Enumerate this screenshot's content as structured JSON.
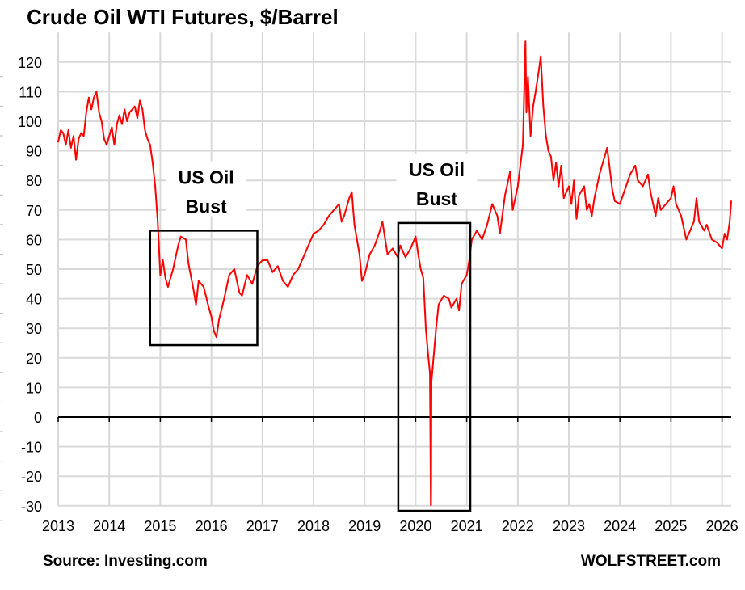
{
  "chart_data": {
    "type": "line",
    "title": "Crude Oil WTI Futures, $/Barrel",
    "xlabel": "",
    "ylabel": "",
    "xlim": [
      2013,
      2026.2
    ],
    "ylim": [
      -30,
      130
    ],
    "grid": true,
    "x_ticks": [
      "2013",
      "2014",
      "2015",
      "2016",
      "2017",
      "2018",
      "2019",
      "2020",
      "2021",
      "2022",
      "2023",
      "2024",
      "2025",
      "2026"
    ],
    "y_ticks": [
      -30,
      -20,
      -10,
      0,
      10,
      20,
      30,
      40,
      50,
      60,
      70,
      80,
      90,
      100,
      110,
      120
    ],
    "line_color": "#ff0000",
    "series": [
      {
        "name": "WTI",
        "points": [
          [
            2013.0,
            93
          ],
          [
            2013.05,
            97
          ],
          [
            2013.1,
            96
          ],
          [
            2013.15,
            92
          ],
          [
            2013.2,
            97
          ],
          [
            2013.25,
            91
          ],
          [
            2013.3,
            95
          ],
          [
            2013.35,
            87
          ],
          [
            2013.4,
            94
          ],
          [
            2013.45,
            96
          ],
          [
            2013.5,
            95
          ],
          [
            2013.55,
            103
          ],
          [
            2013.6,
            108
          ],
          [
            2013.65,
            104
          ],
          [
            2013.7,
            108
          ],
          [
            2013.75,
            110
          ],
          [
            2013.8,
            103
          ],
          [
            2013.85,
            100
          ],
          [
            2013.9,
            94
          ],
          [
            2013.95,
            92
          ],
          [
            2014.0,
            95
          ],
          [
            2014.05,
            98
          ],
          [
            2014.1,
            92
          ],
          [
            2014.15,
            99
          ],
          [
            2014.2,
            102
          ],
          [
            2014.25,
            99
          ],
          [
            2014.3,
            104
          ],
          [
            2014.35,
            100
          ],
          [
            2014.4,
            103
          ],
          [
            2014.5,
            105
          ],
          [
            2014.55,
            101
          ],
          [
            2014.6,
            107
          ],
          [
            2014.65,
            104
          ],
          [
            2014.7,
            97
          ],
          [
            2014.75,
            94
          ],
          [
            2014.8,
            92
          ],
          [
            2014.85,
            86
          ],
          [
            2014.9,
            78
          ],
          [
            2014.95,
            66
          ],
          [
            2015.0,
            48
          ],
          [
            2015.05,
            53
          ],
          [
            2015.1,
            47
          ],
          [
            2015.15,
            44
          ],
          [
            2015.25,
            50
          ],
          [
            2015.35,
            58
          ],
          [
            2015.4,
            61
          ],
          [
            2015.5,
            60
          ],
          [
            2015.55,
            52
          ],
          [
            2015.65,
            43
          ],
          [
            2015.7,
            38
          ],
          [
            2015.75,
            46
          ],
          [
            2015.85,
            44
          ],
          [
            2015.95,
            37
          ],
          [
            2016.0,
            34
          ],
          [
            2016.05,
            29
          ],
          [
            2016.1,
            27
          ],
          [
            2016.15,
            33
          ],
          [
            2016.25,
            40
          ],
          [
            2016.35,
            48
          ],
          [
            2016.45,
            50
          ],
          [
            2016.55,
            42
          ],
          [
            2016.6,
            41
          ],
          [
            2016.7,
            48
          ],
          [
            2016.8,
            45
          ],
          [
            2016.9,
            51
          ],
          [
            2017.0,
            53
          ],
          [
            2017.1,
            53
          ],
          [
            2017.2,
            49
          ],
          [
            2017.3,
            51
          ],
          [
            2017.4,
            46
          ],
          [
            2017.5,
            44
          ],
          [
            2017.6,
            48
          ],
          [
            2017.7,
            50
          ],
          [
            2017.8,
            54
          ],
          [
            2017.9,
            58
          ],
          [
            2018.0,
            62
          ],
          [
            2018.1,
            63
          ],
          [
            2018.2,
            65
          ],
          [
            2018.3,
            68
          ],
          [
            2018.4,
            70
          ],
          [
            2018.5,
            72
          ],
          [
            2018.55,
            66
          ],
          [
            2018.6,
            68
          ],
          [
            2018.7,
            74
          ],
          [
            2018.75,
            76
          ],
          [
            2018.8,
            65
          ],
          [
            2018.9,
            55
          ],
          [
            2018.95,
            46
          ],
          [
            2019.0,
            48
          ],
          [
            2019.1,
            55
          ],
          [
            2019.2,
            58
          ],
          [
            2019.3,
            63
          ],
          [
            2019.35,
            66
          ],
          [
            2019.45,
            55
          ],
          [
            2019.55,
            57
          ],
          [
            2019.65,
            54
          ],
          [
            2019.7,
            58
          ],
          [
            2019.8,
            54
          ],
          [
            2019.9,
            57
          ],
          [
            2020.0,
            61
          ],
          [
            2020.05,
            55
          ],
          [
            2020.1,
            50
          ],
          [
            2020.15,
            47
          ],
          [
            2020.2,
            30
          ],
          [
            2020.25,
            20
          ],
          [
            2020.28,
            15
          ],
          [
            2020.3,
            -37.6
          ],
          [
            2020.31,
            12
          ],
          [
            2020.35,
            20
          ],
          [
            2020.4,
            30
          ],
          [
            2020.45,
            38
          ],
          [
            2020.55,
            41
          ],
          [
            2020.65,
            40
          ],
          [
            2020.7,
            37
          ],
          [
            2020.8,
            40
          ],
          [
            2020.85,
            36
          ],
          [
            2020.9,
            45
          ],
          [
            2021.0,
            48
          ],
          [
            2021.05,
            53
          ],
          [
            2021.1,
            60
          ],
          [
            2021.2,
            63
          ],
          [
            2021.3,
            60
          ],
          [
            2021.4,
            65
          ],
          [
            2021.5,
            72
          ],
          [
            2021.6,
            68
          ],
          [
            2021.65,
            62
          ],
          [
            2021.75,
            75
          ],
          [
            2021.85,
            83
          ],
          [
            2021.9,
            70
          ],
          [
            2022.0,
            78
          ],
          [
            2022.1,
            92
          ],
          [
            2022.15,
            127
          ],
          [
            2022.17,
            103
          ],
          [
            2022.2,
            115
          ],
          [
            2022.25,
            95
          ],
          [
            2022.3,
            105
          ],
          [
            2022.35,
            110
          ],
          [
            2022.42,
            118
          ],
          [
            2022.45,
            122
          ],
          [
            2022.5,
            105
          ],
          [
            2022.55,
            95
          ],
          [
            2022.6,
            90
          ],
          [
            2022.65,
            88
          ],
          [
            2022.7,
            80
          ],
          [
            2022.75,
            86
          ],
          [
            2022.8,
            78
          ],
          [
            2022.85,
            85
          ],
          [
            2022.9,
            74
          ],
          [
            2023.0,
            78
          ],
          [
            2023.05,
            72
          ],
          [
            2023.1,
            80
          ],
          [
            2023.15,
            67
          ],
          [
            2023.2,
            75
          ],
          [
            2023.3,
            78
          ],
          [
            2023.35,
            70
          ],
          [
            2023.4,
            72
          ],
          [
            2023.45,
            68
          ],
          [
            2023.5,
            74
          ],
          [
            2023.6,
            82
          ],
          [
            2023.7,
            88
          ],
          [
            2023.75,
            91
          ],
          [
            2023.8,
            84
          ],
          [
            2023.85,
            77
          ],
          [
            2023.9,
            73
          ],
          [
            2024.0,
            72
          ],
          [
            2024.1,
            77
          ],
          [
            2024.2,
            82
          ],
          [
            2024.3,
            85
          ],
          [
            2024.35,
            80
          ],
          [
            2024.45,
            78
          ],
          [
            2024.55,
            82
          ],
          [
            2024.6,
            76
          ],
          [
            2024.7,
            68
          ],
          [
            2024.75,
            74
          ],
          [
            2024.8,
            70
          ],
          [
            2024.9,
            72
          ],
          [
            2025.0,
            74
          ],
          [
            2025.05,
            78
          ],
          [
            2025.1,
            72
          ],
          [
            2025.2,
            68
          ],
          [
            2025.3,
            60
          ],
          [
            2025.35,
            62
          ],
          [
            2025.45,
            66
          ],
          [
            2025.5,
            74
          ],
          [
            2025.55,
            66
          ],
          [
            2025.65,
            63
          ],
          [
            2025.7,
            65
          ],
          [
            2025.8,
            60
          ],
          [
            2025.9,
            59
          ],
          [
            2026.0,
            57
          ],
          [
            2026.05,
            62
          ],
          [
            2026.1,
            60
          ],
          [
            2026.15,
            66
          ],
          [
            2026.18,
            73
          ]
        ]
      }
    ],
    "annotations": [
      {
        "text_line1": "US Oil",
        "text_line2": "Bust",
        "box_x": [
          2014.8,
          2016.9
        ],
        "box_y": [
          24.3,
          63
        ]
      },
      {
        "text_line1": "US Oil",
        "text_line2": "Bust",
        "box_x": [
          2019.66,
          2021.07
        ],
        "box_y": [
          -31.7,
          65.6
        ]
      }
    ]
  },
  "footer": {
    "source": "Source: Investing.com",
    "brand": "WOLFSTREET.com"
  }
}
